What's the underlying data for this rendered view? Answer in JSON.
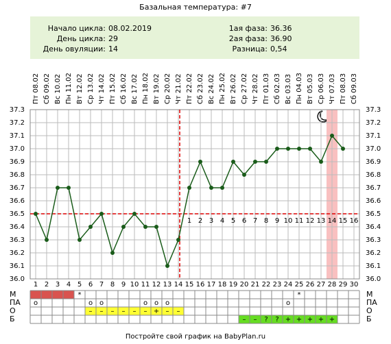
{
  "chart_data": {
    "type": "line",
    "title": "Базальная температура: #7",
    "info_left": [
      {
        "label": "Начало цикла:",
        "value": "08.02.2019"
      },
      {
        "label": "День цикла:",
        "value": "29"
      },
      {
        "label": "День овуляции:",
        "value": "14"
      }
    ],
    "info_right": [
      {
        "label": "1ая фаза:",
        "value": "36.36"
      },
      {
        "label": "2ая фаза:",
        "value": "36.90"
      },
      {
        "label": "Разница:",
        "value": "0,54"
      }
    ],
    "x": [
      1,
      2,
      3,
      4,
      5,
      6,
      7,
      8,
      9,
      10,
      11,
      12,
      13,
      14,
      15,
      16,
      17,
      18,
      19,
      20,
      21,
      22,
      23,
      24,
      25,
      26,
      27,
      28,
      29,
      30
    ],
    "xlim": [
      0.5,
      30.5
    ],
    "date_labels": [
      "Пт 08.02",
      "Сб 09.02",
      "Вс 10.02",
      "Пн 11.02",
      "Вт 12.02",
      "Ср 13.02",
      "Чт 14.02",
      "Пт 15.02",
      "Сб 16.02",
      "Вс 17.02",
      "Пн 18.02",
      "Вт 19.02",
      "Ср 20.02",
      "Чт 21.02",
      "Пт 22.02",
      "Сб 23.02",
      "Вс 24.02",
      "Пн 25.02",
      "Вт 26.02",
      "Ср 27.02",
      "Чт 28.02",
      "Пт 01.03",
      "Сб 02.03",
      "Вс 03.03",
      "Пн 04.03",
      "Вт 05.03",
      "Ср 06.03",
      "Чт 07.03",
      "Пт 08.03",
      "Сб 09.03"
    ],
    "values": [
      36.5,
      36.3,
      36.7,
      36.7,
      36.3,
      36.4,
      36.5,
      36.2,
      36.4,
      36.5,
      36.4,
      36.4,
      36.1,
      36.3,
      36.7,
      36.9,
      36.7,
      36.7,
      36.9,
      36.8,
      36.9,
      36.9,
      37.0,
      37.0,
      37.0,
      37.0,
      36.9,
      37.1,
      37.0,
      null
    ],
    "color": "#1a5c1a",
    "ylim": [
      36.0,
      37.3
    ],
    "yticks": [
      {
        "value": 36.0,
        "label": "36.0"
      },
      36.1,
      36.2,
      36.3,
      36.4,
      36.5,
      36.6,
      36.7,
      36.8,
      36.9,
      {
        "value": 37.0,
        "label": "37.0"
      },
      37.1,
      37.2,
      37.3
    ],
    "grid": true,
    "cover_line": 36.5,
    "ovulation_day": 14,
    "highlight_day": 28,
    "phase2_labels": [
      1,
      2,
      3,
      4,
      5,
      6,
      7,
      8,
      9,
      10,
      11,
      12,
      13,
      14,
      15,
      16
    ],
    "table": [
      {
        "label": "М",
        "fill_color": "#d9534f",
        "fill_range": [
          1,
          4
        ],
        "cells": [
          null,
          null,
          null,
          null,
          "*",
          null,
          null,
          null,
          null,
          null,
          null,
          null,
          null,
          null,
          null,
          null,
          null,
          null,
          null,
          null,
          null,
          null,
          null,
          null,
          "*",
          null,
          null,
          null,
          null,
          null
        ]
      },
      {
        "label": "ПА",
        "fill_color": null,
        "fill_range": null,
        "cells": [
          "o",
          null,
          null,
          null,
          null,
          "o",
          "o",
          null,
          null,
          null,
          "o",
          "o",
          "o",
          null,
          null,
          null,
          null,
          null,
          null,
          null,
          null,
          null,
          null,
          "o",
          null,
          null,
          null,
          null,
          null,
          null
        ]
      },
      {
        "label": "О",
        "fill_color": "#ffff33",
        "fill_range": [
          6,
          14
        ],
        "cells": [
          null,
          null,
          null,
          null,
          null,
          "–",
          "–",
          "–",
          "–",
          "–",
          "–",
          "+",
          "–",
          "–",
          null,
          null,
          null,
          null,
          null,
          null,
          null,
          null,
          null,
          null,
          null,
          null,
          null,
          null,
          null,
          null
        ]
      },
      {
        "label": "Б",
        "fill_color": "#66dd22",
        "fill_range": [
          20,
          28
        ],
        "cells": [
          null,
          null,
          null,
          null,
          null,
          null,
          null,
          null,
          null,
          null,
          null,
          null,
          null,
          null,
          null,
          null,
          null,
          null,
          null,
          "–",
          "–",
          "?",
          "?",
          "+",
          "+",
          "+",
          "+",
          "+",
          null,
          null
        ]
      }
    ],
    "footer": "Постройте свой график на BabyPlan.ru"
  }
}
